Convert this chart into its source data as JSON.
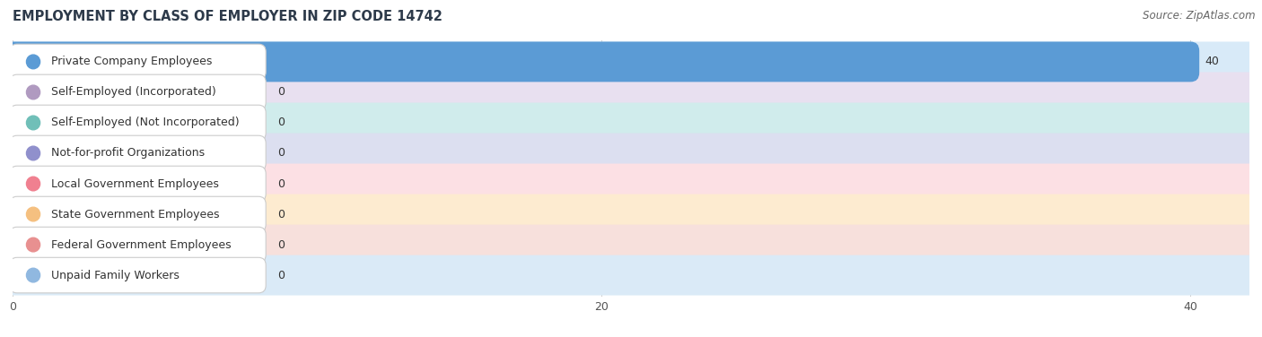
{
  "title": "EMPLOYMENT BY CLASS OF EMPLOYER IN ZIP CODE 14742",
  "source": "Source: ZipAtlas.com",
  "categories": [
    "Private Company Employees",
    "Self-Employed (Incorporated)",
    "Self-Employed (Not Incorporated)",
    "Not-for-profit Organizations",
    "Local Government Employees",
    "State Government Employees",
    "Federal Government Employees",
    "Unpaid Family Workers"
  ],
  "values": [
    40,
    0,
    0,
    0,
    0,
    0,
    0,
    0
  ],
  "bar_colors": [
    "#5b9bd5",
    "#b09ac0",
    "#70bfb8",
    "#9090cc",
    "#f08090",
    "#f5c080",
    "#e89090",
    "#90b8e0"
  ],
  "bar_bg_colors": [
    "#d8eaf8",
    "#e8e0f0",
    "#d0ecec",
    "#dcdff0",
    "#fce0e4",
    "#fdebd0",
    "#f7e0dc",
    "#daeaf7"
  ],
  "xlim": [
    0,
    42
  ],
  "xticks": [
    0,
    20,
    40
  ],
  "title_fontsize": 10.5,
  "source_fontsize": 8.5,
  "label_fontsize": 9,
  "value_fontsize": 9,
  "background_color": "#ffffff",
  "row_bg_even": "#f5f5f5",
  "row_bg_odd": "#ffffff"
}
